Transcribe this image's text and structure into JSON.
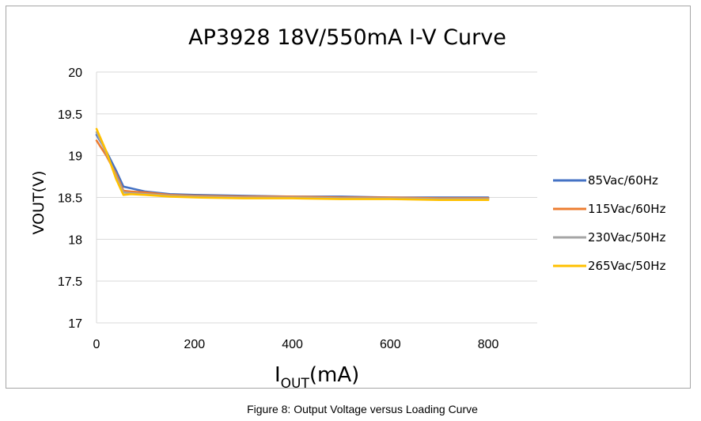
{
  "caption": "Figure 8:  Output Voltage versus Loading Curve",
  "chart_data": {
    "type": "line",
    "title": "AP3928 18V/550mA I-V Curve",
    "xlabel_main": "I",
    "xlabel_sub": "OUT",
    "xlabel_unit": "(mA)",
    "ylabel": "VOUT(V)",
    "xlim": [
      0,
      900
    ],
    "ylim": [
      17,
      20
    ],
    "xticks": [
      "0",
      "200",
      "400",
      "600",
      "800"
    ],
    "yticks": [
      "17",
      "17.5",
      "18",
      "18.5",
      "19",
      "19.5",
      "20"
    ],
    "grid": true,
    "legend_position": "right",
    "series": [
      {
        "name": "85Vac/60Hz",
        "color": "#4472c4",
        "x": [
          0,
          20,
          40,
          55,
          70,
          100,
          150,
          200,
          300,
          400,
          500,
          600,
          700,
          800
        ],
        "y": [
          19.25,
          19.05,
          18.82,
          18.63,
          18.61,
          18.57,
          18.54,
          18.53,
          18.52,
          18.51,
          18.51,
          18.5,
          18.5,
          18.5
        ]
      },
      {
        "name": "115Vac/60Hz",
        "color": "#ed7d31",
        "x": [
          0,
          20,
          40,
          55,
          70,
          100,
          150,
          200,
          300,
          400,
          500,
          600,
          700,
          800
        ],
        "y": [
          19.18,
          19.0,
          18.78,
          18.58,
          18.57,
          18.56,
          18.53,
          18.52,
          18.51,
          18.51,
          18.5,
          18.5,
          18.49,
          18.49
        ]
      },
      {
        "name": "230Vac/50Hz",
        "color": "#a5a5a5",
        "x": [
          0,
          20,
          40,
          55,
          70,
          100,
          150,
          200,
          300,
          400,
          500,
          600,
          700,
          800
        ],
        "y": [
          19.28,
          19.03,
          18.75,
          18.56,
          18.55,
          18.54,
          18.52,
          18.51,
          18.5,
          18.5,
          18.49,
          18.49,
          18.48,
          18.48
        ]
      },
      {
        "name": "265Vac/50Hz",
        "color": "#ffc000",
        "x": [
          0,
          20,
          40,
          55,
          70,
          100,
          150,
          200,
          300,
          400,
          500,
          600,
          700,
          800
        ],
        "y": [
          19.32,
          19.05,
          18.72,
          18.53,
          18.54,
          18.53,
          18.51,
          18.5,
          18.49,
          18.49,
          18.48,
          18.48,
          18.47,
          18.47
        ]
      }
    ]
  }
}
